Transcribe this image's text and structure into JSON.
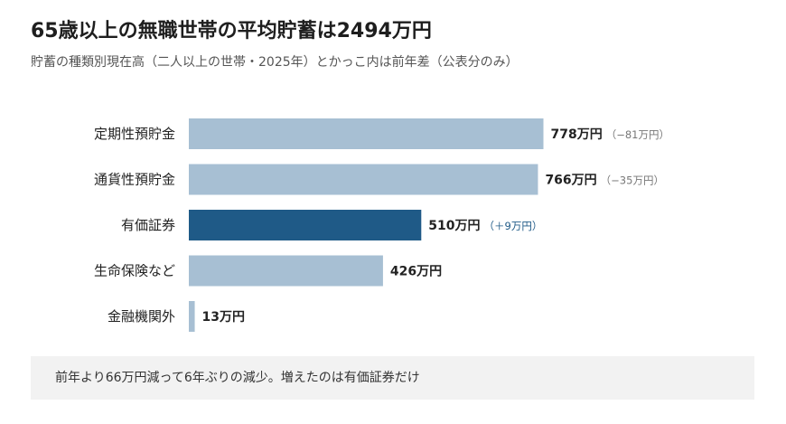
{
  "title": "65歳以上の無職世帯の平均貯蓄は2494万円",
  "subtitle": "貯蓄の種類別現在高（二人以上の世帯・2025年）とかっこ内は前年差（公表分のみ）",
  "footnote": "前年より66万円減って6年ぶりの減少。増えたのは有価証券だけ",
  "colors": {
    "bar": "#a7bfd3",
    "highlight": "#1f5a87",
    "change_gray": "#777777",
    "change_highlight": "#1f5a87"
  },
  "chart_data": {
    "type": "bar",
    "orientation": "horizontal",
    "categories": [
      "定期性預貯金",
      "通貨性預貯金",
      "有価証券",
      "生命保険など",
      "金融機関外"
    ],
    "values": [
      778,
      766,
      510,
      426,
      13
    ],
    "value_labels": [
      "778万円",
      "766万円",
      "510万円",
      "426万円",
      "13万円"
    ],
    "change_labels": [
      "（−81万円）",
      "（−35万円）",
      "（＋9万円）",
      "",
      ""
    ],
    "highlight_index": 2,
    "unit": "万円"
  }
}
